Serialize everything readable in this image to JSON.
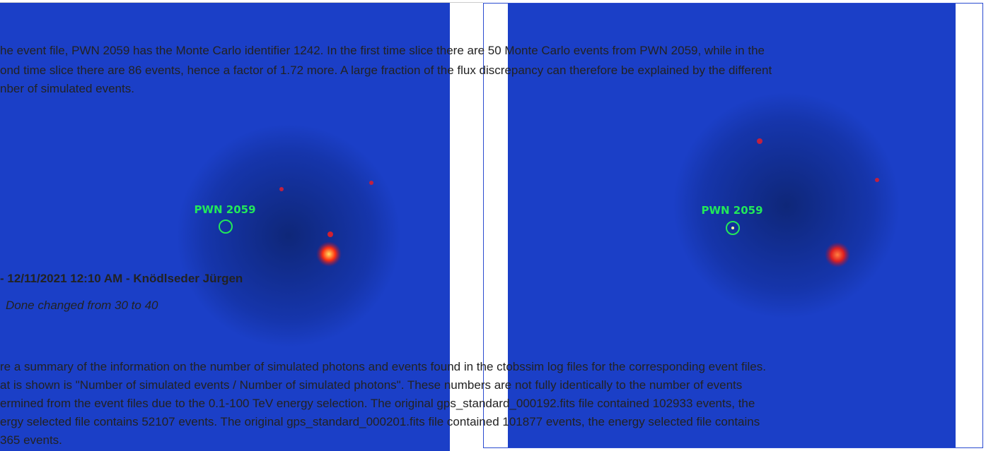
{
  "comment_text": [
    "he event file, PWN 2059 has the Monte Carlo identifier 1242. In the first time slice there are 50 Monte Carlo events from PWN 2059, while in the",
    "ond time slice there are 86 events, hence a factor of 1.72 more. A large fraction of the flux discrepancy can therefore be explained by the different",
    "nber of simulated events."
  ],
  "journal": {
    "header": "- 12/11/2021 12:10 AM - Knödlseder Jürgen",
    "detail": "Done changed from 30 to 40"
  },
  "summary_text": [
    "re a summary of the information on the number of simulated photons and events found in the ctobssim log files for the corresponding event files.",
    "at is shown is \"Number of simulated events / Number of simulated photons\". These numbers are not fully identically to the number of events",
    "ermined from the event files due to the 0.1-100 TeV energy selection. The original gps_standard_000192.fits file contained 102933 events, the",
    "ergy selected file contains 52107 events. The original gps_standard_000201.fits file contained 101877 events, the energy selected file contains",
    "365 events."
  ],
  "images": [
    {
      "label": "PWN 2059"
    },
    {
      "label": "PWN 2059"
    }
  ]
}
